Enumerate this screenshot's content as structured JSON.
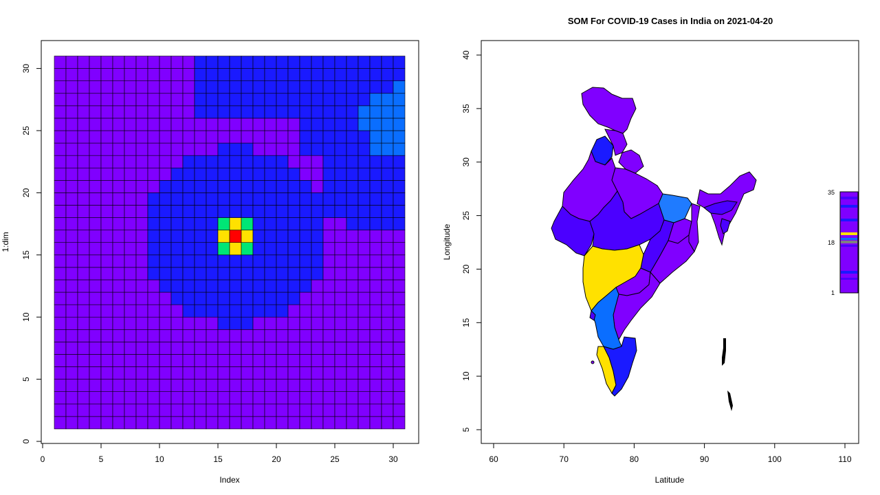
{
  "left_plot": {
    "xlabel": "Index",
    "ylabel": "1:dim",
    "xticks": [
      "0",
      "5",
      "10",
      "15",
      "20",
      "25",
      "30"
    ],
    "yticks": [
      "0",
      "5",
      "10",
      "15",
      "20",
      "25",
      "30"
    ]
  },
  "right_plot": {
    "title": "SOM For COVID-19 Cases in India on 2021-04-20",
    "xlabel": "Latitude",
    "ylabel": "Longitude",
    "xticks": [
      "60",
      "70",
      "80",
      "90",
      "100",
      "110"
    ],
    "yticks": [
      "5",
      "10",
      "15",
      "20",
      "25",
      "30",
      "35",
      "40"
    ],
    "colorbar_labels": [
      "35",
      "18",
      "1"
    ]
  },
  "colors": {
    "violet": "#8000FF",
    "purple_blue": "#4B00FF",
    "blue": "#1A1AFF",
    "light_blue": "#0A6EFF",
    "azure": "#1F7BFF",
    "green": "#00E676",
    "yellow": "#FFE100",
    "red": "#FF0000"
  },
  "chart_data": [
    {
      "type": "heatmap",
      "xlabel": "Index",
      "ylabel": "1:dim",
      "xlim": [
        0,
        31
      ],
      "ylim": [
        0,
        31
      ],
      "grid_size": [
        30,
        30
      ],
      "note": "",
      "regions": {
        "peak_center": [
          16.5,
          16.5
        ],
        "peak_color": "red",
        "ring1_color": "yellow",
        "ring2_color": "green",
        "blob_color": "blue",
        "upper_right_color": "blue",
        "corner_color": "light_blue",
        "background_color": "violet"
      }
    },
    {
      "type": "heatmap",
      "title": "SOM For COVID-19 Cases in India on 2021-04-20",
      "xlabel": "Latitude",
      "ylabel": "Longitude",
      "xlim": [
        60,
        110
      ],
      "ylim": [
        5,
        40
      ],
      "colorbar": [
        "35",
        "18",
        "1"
      ]
    }
  ]
}
